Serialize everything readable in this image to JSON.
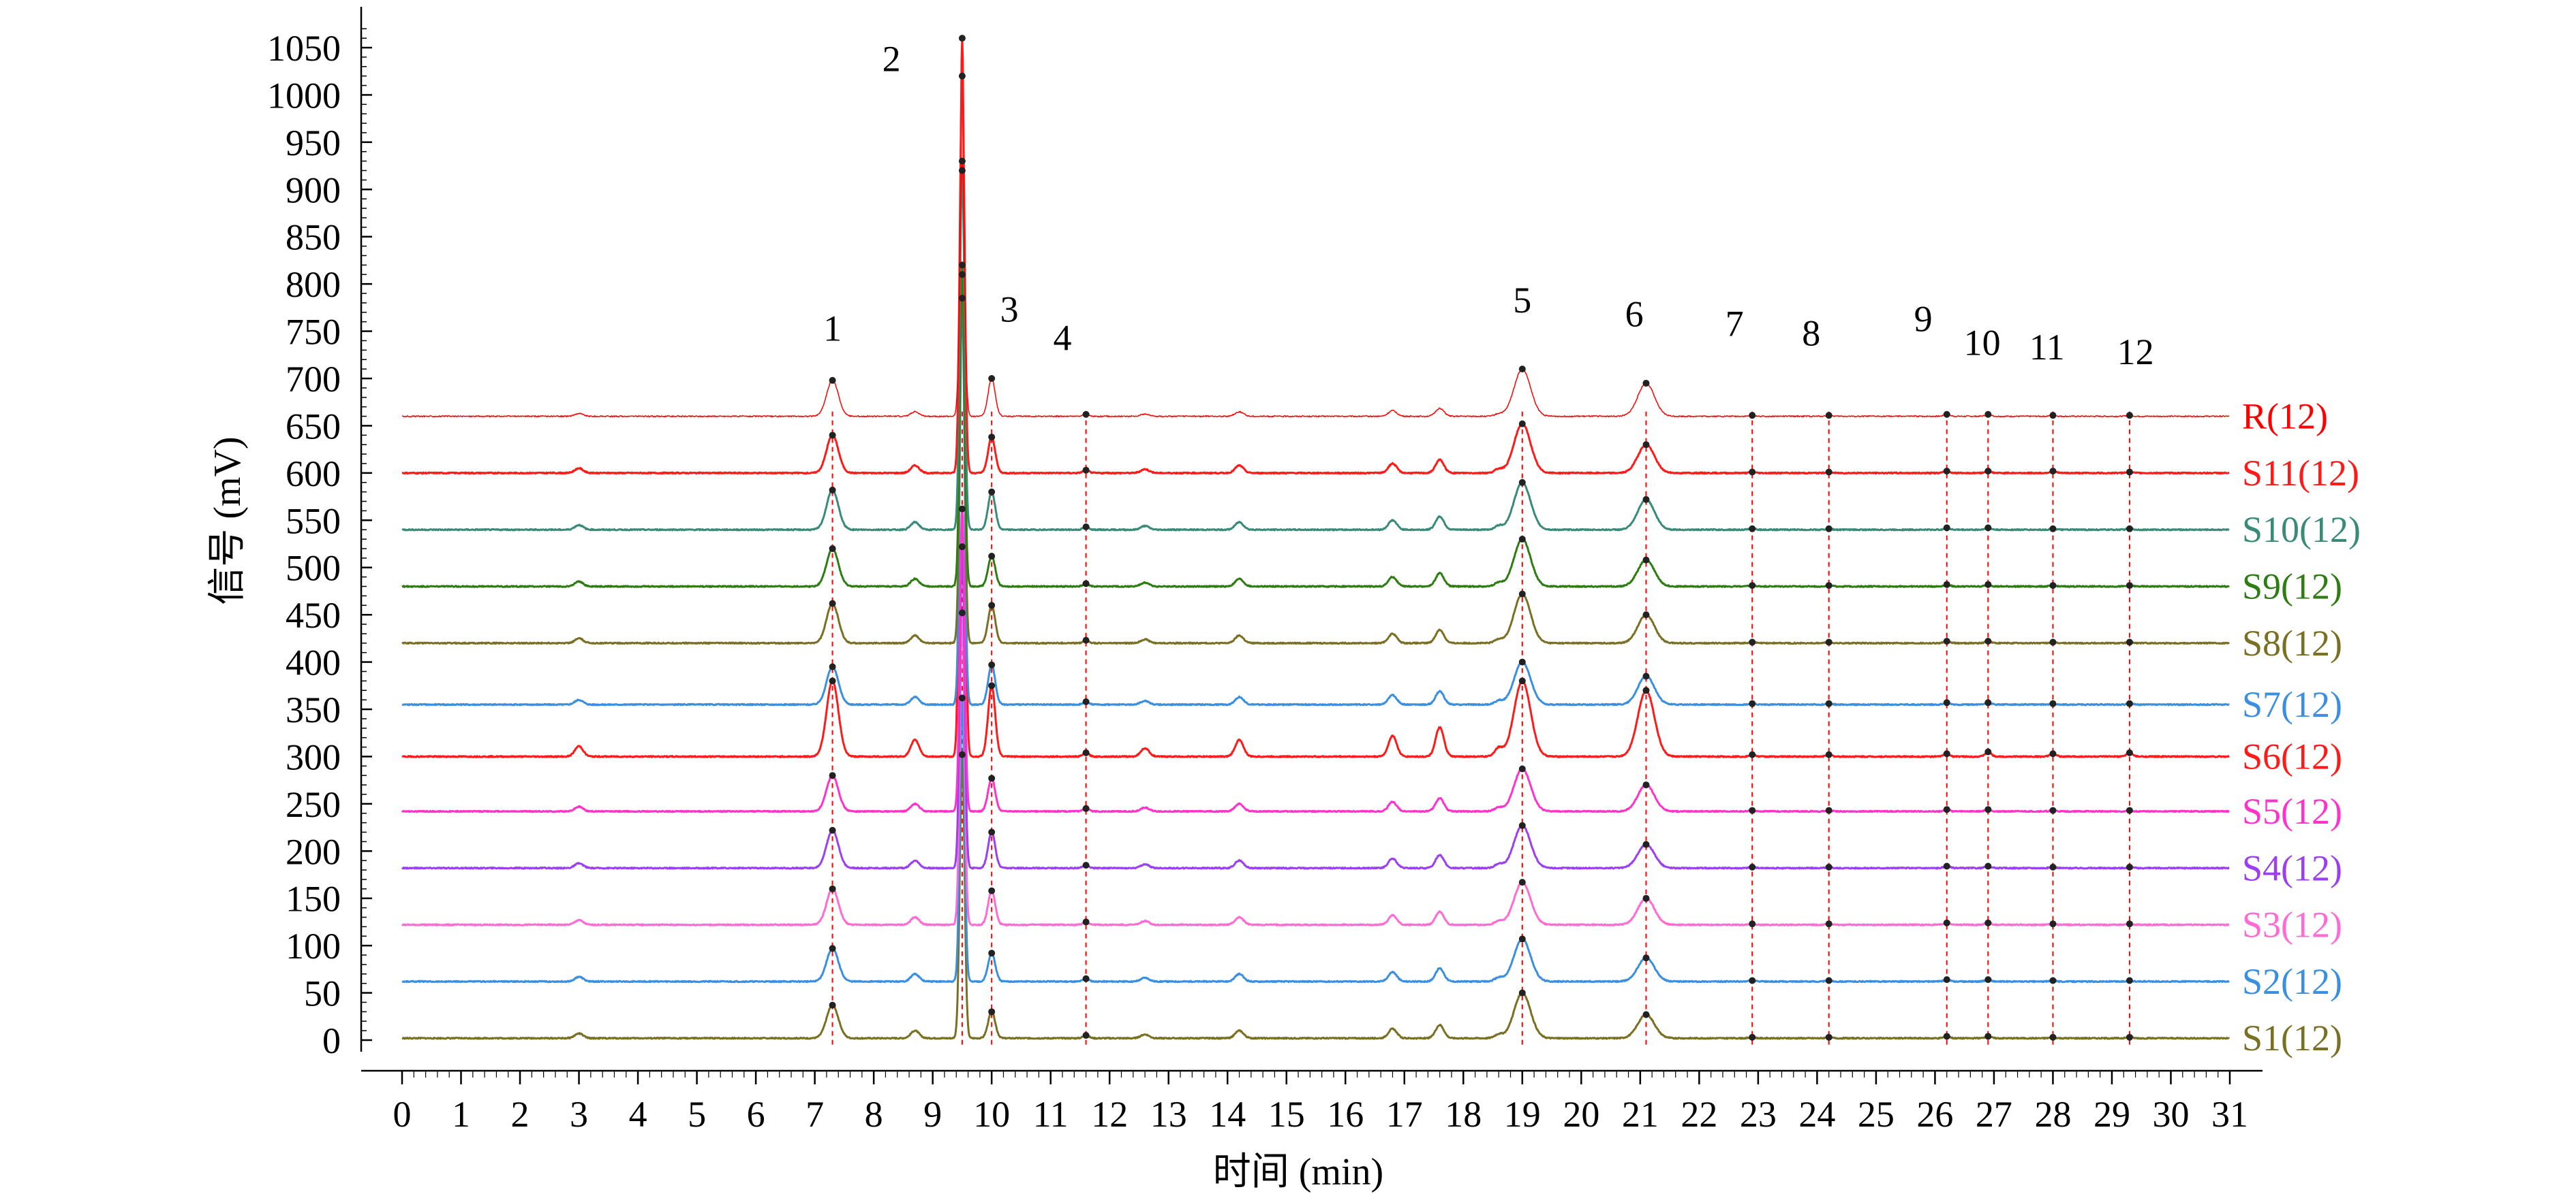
{
  "chart_data": {
    "type": "line",
    "xlabel": "时间 (min)",
    "ylabel": "信号 (mV)",
    "xlim": [
      0,
      31
    ],
    "ylim": [
      -20,
      1100
    ],
    "x_ticks": [
      0,
      1,
      2,
      3,
      4,
      5,
      6,
      7,
      8,
      9,
      10,
      11,
      12,
      13,
      14,
      15,
      16,
      17,
      18,
      19,
      20,
      21,
      22,
      23,
      24,
      25,
      26,
      27,
      28,
      29,
      30,
      31
    ],
    "y_ticks": [
      0,
      50,
      100,
      150,
      200,
      250,
      300,
      350,
      400,
      450,
      500,
      550,
      600,
      650,
      700,
      750,
      800,
      850,
      900,
      950,
      1000,
      1050
    ],
    "grid": false,
    "legend_position": "right, beside each trace",
    "peak_numbers": [
      {
        "label": "1",
        "x": 7.3,
        "y": 740
      },
      {
        "label": "2",
        "x": 8.3,
        "y": 1025
      },
      {
        "label": "3",
        "x": 10.3,
        "y": 760
      },
      {
        "label": "4",
        "x": 11.2,
        "y": 730
      },
      {
        "label": "5",
        "x": 19.0,
        "y": 770
      },
      {
        "label": "6",
        "x": 20.9,
        "y": 755
      },
      {
        "label": "7",
        "x": 22.6,
        "y": 745
      },
      {
        "label": "8",
        "x": 23.9,
        "y": 735
      },
      {
        "label": "9",
        "x": 25.8,
        "y": 750
      },
      {
        "label": "10",
        "x": 26.8,
        "y": 725
      },
      {
        "label": "11",
        "x": 27.9,
        "y": 720
      },
      {
        "label": "12",
        "x": 29.4,
        "y": 715
      }
    ],
    "peaks": [
      {
        "id": 1,
        "rt": 7.3,
        "width": 0.1
      },
      {
        "id": 2,
        "rt": 9.5,
        "width": 0.04
      },
      {
        "id": 3,
        "rt": 10.0,
        "width": 0.06
      },
      {
        "id": 4,
        "rt": 11.6,
        "width": 0.05
      },
      {
        "id": 5,
        "rt": 19.0,
        "width": 0.14
      },
      {
        "id": 6,
        "rt": 21.1,
        "width": 0.14
      },
      {
        "id": 7,
        "rt": 22.9,
        "width": 0.05
      },
      {
        "id": 8,
        "rt": 24.2,
        "width": 0.05
      },
      {
        "id": 9,
        "rt": 26.2,
        "width": 0.05
      },
      {
        "id": 10,
        "rt": 26.9,
        "width": 0.05
      },
      {
        "id": 11,
        "rt": 28.0,
        "width": 0.05
      },
      {
        "id": 12,
        "rt": 29.3,
        "width": 0.05
      }
    ],
    "minor_peaks": [
      {
        "rt": 3.0,
        "h": 5
      },
      {
        "rt": 8.7,
        "h": 8
      },
      {
        "rt": 12.6,
        "h": 4
      },
      {
        "rt": 14.2,
        "h": 8
      },
      {
        "rt": 16.8,
        "h": 10
      },
      {
        "rt": 17.6,
        "h": 14
      },
      {
        "rt": 18.6,
        "h": 4
      }
    ],
    "marker_lines_x": [
      7.3,
      9.5,
      10.0,
      11.6,
      19.0,
      21.1,
      22.9,
      24.2,
      26.2,
      26.9,
      28.0,
      29.3
    ],
    "series": [
      {
        "name": "R(12)",
        "color": "#ff0000",
        "baseline": 660,
        "linewidth": 1.5,
        "peak_heights": [
          38,
          270,
          40,
          2,
          50,
          35,
          1,
          1,
          2,
          2,
          1,
          1
        ],
        "minor_scale": 0.6
      },
      {
        "name": "S11(12)",
        "color": "#ff1a1a",
        "baseline": 600,
        "linewidth": 3,
        "peak_heights": [
          40,
          420,
          38,
          3,
          52,
          30,
          1,
          1,
          2,
          2,
          2,
          1
        ],
        "minor_scale": 1.0
      },
      {
        "name": "S10(12)",
        "color": "#3a8a78",
        "baseline": 540,
        "linewidth": 3,
        "peak_heights": [
          42,
          380,
          40,
          3,
          50,
          32,
          1,
          1,
          2,
          2,
          1,
          1
        ],
        "minor_scale": 1.0
      },
      {
        "name": "S9(12)",
        "color": "#2e7d12",
        "baseline": 480,
        "linewidth": 3,
        "peak_heights": [
          40,
          340,
          32,
          3,
          50,
          28,
          1,
          1,
          2,
          2,
          1,
          1
        ],
        "minor_scale": 1.0
      },
      {
        "name": "S8(12)",
        "color": "#7a7024",
        "baseline": 420,
        "linewidth": 3,
        "peak_heights": [
          42,
          390,
          40,
          3,
          52,
          30,
          1,
          1,
          2,
          2,
          1,
          1
        ],
        "minor_scale": 1.0
      },
      {
        "name": "S7(12)",
        "color": "#3a8fe0",
        "baseline": 355,
        "linewidth": 3,
        "peak_heights": [
          40,
          430,
          42,
          3,
          45,
          30,
          1,
          1,
          2,
          2,
          1,
          1
        ],
        "minor_scale": 1.0
      },
      {
        "name": "S6(12)",
        "color": "#ff1a1a",
        "baseline": 300,
        "linewidth": 3,
        "peak_heights": [
          80,
          760,
          75,
          4,
          80,
          70,
          2,
          2,
          3,
          5,
          3,
          4
        ],
        "minor_scale": 2.2
      },
      {
        "name": "S5(12)",
        "color": "#ff33cc",
        "baseline": 242,
        "linewidth": 3,
        "peak_heights": [
          38,
          320,
          35,
          3,
          45,
          28,
          1,
          1,
          2,
          2,
          1,
          1
        ],
        "minor_scale": 1.0
      },
      {
        "name": "S4(12)",
        "color": "#9b3ff0",
        "baseline": 182,
        "linewidth": 3,
        "peak_heights": [
          40,
          340,
          38,
          3,
          45,
          25,
          1,
          1,
          2,
          2,
          1,
          1
        ],
        "minor_scale": 1.0
      },
      {
        "name": "S3(12)",
        "color": "#ff6ad5",
        "baseline": 122,
        "linewidth": 3,
        "peak_heights": [
          38,
          330,
          36,
          3,
          45,
          28,
          1,
          1,
          2,
          2,
          1,
          1
        ],
        "minor_scale": 1.0
      },
      {
        "name": "S2(12)",
        "color": "#3a8fe0",
        "baseline": 62,
        "linewidth": 3,
        "peak_heights": [
          35,
          300,
          30,
          3,
          45,
          25,
          1,
          1,
          2,
          2,
          1,
          1
        ],
        "minor_scale": 1.0
      },
      {
        "name": "S1(12)",
        "color": "#7a7024",
        "baseline": 2,
        "linewidth": 3,
        "peak_heights": [
          35,
          300,
          28,
          3,
          48,
          25,
          1,
          1,
          2,
          2,
          1,
          1
        ],
        "minor_scale": 1.0
      }
    ]
  }
}
